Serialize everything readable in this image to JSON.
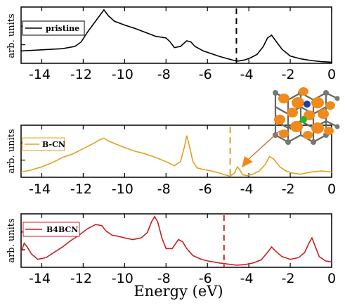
{
  "xlabel": "Energy (eV)",
  "chart_data": [
    {
      "type": "line",
      "ylabel": "arb. units",
      "legend": "pristine",
      "color": "#000000",
      "fermi_level": -4.6,
      "fermi_color": "#000000",
      "xlim": [
        -15,
        0
      ],
      "x_ticks": [
        -14,
        -12,
        -10,
        -8,
        -6,
        -4,
        -2,
        0
      ],
      "series": [
        {
          "name": "pristine",
          "x": [
            -15,
            -14,
            -13,
            -12.4,
            -12.1,
            -11.8,
            -11.5,
            -11.2,
            -11.0,
            -10.8,
            -10.5,
            -10,
            -9.5,
            -9,
            -8.5,
            -8.0,
            -7.8,
            -7.6,
            -7.3,
            -7.0,
            -6.8,
            -6.6,
            -6.2,
            -5.8,
            -5.4,
            -5.0,
            -4.7,
            -4.5,
            -4.2,
            -3.9,
            -3.6,
            -3.3,
            -3.1,
            -2.9,
            -2.7,
            -2.4,
            -2.0,
            -1.5,
            -1.0,
            -0.5,
            0
          ],
          "y": [
            0.22,
            0.24,
            0.26,
            0.3,
            0.38,
            0.55,
            0.7,
            0.85,
            0.95,
            0.85,
            0.75,
            0.68,
            0.62,
            0.55,
            0.48,
            0.45,
            0.38,
            0.28,
            0.3,
            0.4,
            0.38,
            0.3,
            0.22,
            0.17,
            0.12,
            0.08,
            0.05,
            0.04,
            0.06,
            0.1,
            0.16,
            0.3,
            0.45,
            0.5,
            0.4,
            0.25,
            0.13,
            0.08,
            0.05,
            0.03,
            0.02
          ]
        }
      ]
    },
    {
      "type": "line",
      "ylabel": "arb. units",
      "legend": "B-CN",
      "color": "#e0a020",
      "fermi_level": -4.9,
      "fermi_color": "#e0a020",
      "xlim": [
        -15,
        0
      ],
      "x_ticks": [
        -14,
        -12,
        -10,
        -8,
        -6,
        -4,
        -2,
        0
      ],
      "series": [
        {
          "name": "B-CN",
          "x": [
            -15,
            -14.5,
            -14,
            -13.5,
            -13,
            -12.5,
            -12,
            -11.5,
            -11.2,
            -11.0,
            -10.8,
            -10.5,
            -10,
            -9.5,
            -9,
            -8.5,
            -8.0,
            -7.6,
            -7.3,
            -7.1,
            -7.0,
            -6.9,
            -6.7,
            -6.5,
            -6.2,
            -5.8,
            -5.4,
            -5.1,
            -4.9,
            -4.7,
            -4.55,
            -4.45,
            -4.3,
            -4.1,
            -3.8,
            -3.5,
            -3.2,
            -3.0,
            -2.8,
            -2.5,
            -2.2,
            -1.9,
            -1.5,
            -1.0,
            -0.5,
            0
          ],
          "y": [
            0.1,
            0.14,
            0.2,
            0.28,
            0.38,
            0.45,
            0.55,
            0.65,
            0.72,
            0.75,
            0.7,
            0.65,
            0.57,
            0.5,
            0.45,
            0.38,
            0.3,
            0.22,
            0.3,
            0.6,
            0.8,
            0.65,
            0.3,
            0.18,
            0.15,
            0.12,
            0.08,
            0.04,
            0.02,
            0.08,
            0.2,
            0.15,
            0.05,
            0.03,
            0.06,
            0.12,
            0.25,
            0.4,
            0.35,
            0.2,
            0.12,
            0.08,
            0.06,
            0.1,
            0.12,
            0.1
          ]
        }
      ]
    },
    {
      "type": "line",
      "ylabel": "arb. units",
      "legend": "B4BCN",
      "color": "#cc1f1f",
      "fermi_level": -5.2,
      "fermi_color": "#cc1f1f",
      "xlim": [
        -15,
        0
      ],
      "x_ticks": [
        -14,
        -12,
        -10,
        -8,
        -6,
        -4,
        -2,
        0
      ],
      "series": [
        {
          "name": "B4BCN",
          "x": [
            -15,
            -14.85,
            -14.7,
            -14.5,
            -14.2,
            -13.8,
            -13.4,
            -13,
            -12.6,
            -12.2,
            -11.8,
            -11.4,
            -11.1,
            -10.9,
            -10.6,
            -10.3,
            -10.0,
            -9.6,
            -9.2,
            -8.9,
            -8.7,
            -8.55,
            -8.4,
            -8.2,
            -8.0,
            -7.7,
            -7.4,
            -7.2,
            -7.0,
            -6.7,
            -6.3,
            -6.0,
            -5.7,
            -5.4,
            -5.0,
            -4.6,
            -4.2,
            -3.8,
            -3.4,
            -3.1,
            -2.9,
            -2.7,
            -2.4,
            -2.0,
            -1.6,
            -1.3,
            -1.1,
            -0.95,
            -0.8,
            -0.6,
            -0.3,
            0
          ],
          "y": [
            0.28,
            0.45,
            0.38,
            0.25,
            0.15,
            0.18,
            0.28,
            0.38,
            0.5,
            0.6,
            0.72,
            0.8,
            0.78,
            0.68,
            0.6,
            0.58,
            0.55,
            0.52,
            0.55,
            0.65,
            0.85,
            0.95,
            0.85,
            0.55,
            0.35,
            0.35,
            0.52,
            0.48,
            0.35,
            0.22,
            0.15,
            0.12,
            0.1,
            0.08,
            0.06,
            0.04,
            0.05,
            0.08,
            0.14,
            0.28,
            0.38,
            0.3,
            0.2,
            0.15,
            0.18,
            0.28,
            0.45,
            0.55,
            0.4,
            0.2,
            0.12,
            0.1
          ]
        }
      ]
    }
  ]
}
